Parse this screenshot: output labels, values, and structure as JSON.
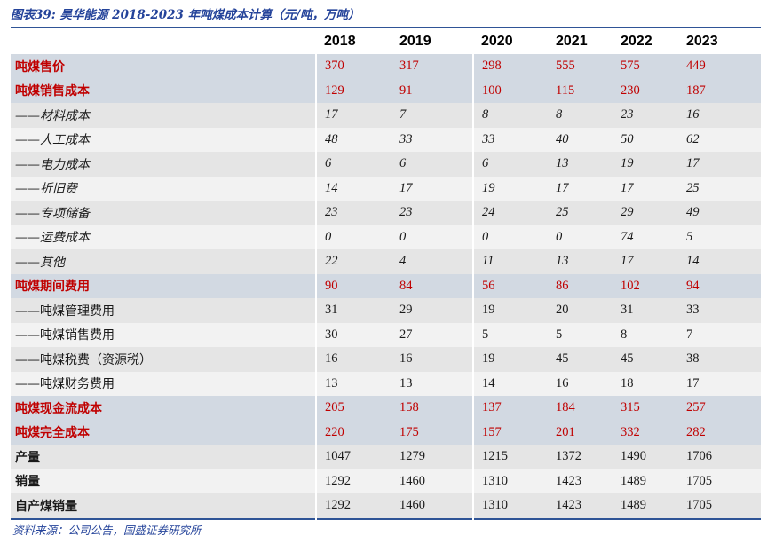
{
  "figure": {
    "title": "图表39: 昊华能源 2018-2023 年吨煤成本计算（元/吨，万吨）",
    "source": "资料来源：公司公告，国盛证券研究所"
  },
  "colors": {
    "accent_red": "#C00000",
    "title_blue": "#24439A",
    "rule_navy": "#2F5496",
    "row_highlight_blue": "#D2D9E2",
    "row_gray": "#E5E5E5",
    "row_light": "#F2F2F2"
  },
  "table": {
    "columns": [
      "",
      "2018",
      "2019",
      "2020",
      "2021",
      "2022",
      "2023"
    ],
    "rows": [
      {
        "label": "吨煤售价",
        "values": [
          "370",
          "317",
          "298",
          "555",
          "575",
          "449"
        ],
        "style": "red",
        "bg": "blue"
      },
      {
        "label": "吨煤销售成本",
        "values": [
          "129",
          "91",
          "100",
          "115",
          "230",
          "187"
        ],
        "style": "red",
        "bg": "blue"
      },
      {
        "label": "——材料成本",
        "values": [
          "17",
          "7",
          "8",
          "8",
          "23",
          "16"
        ],
        "style": "italic",
        "bg": "gray"
      },
      {
        "label": "——人工成本",
        "values": [
          "48",
          "33",
          "33",
          "40",
          "50",
          "62"
        ],
        "style": "italic",
        "bg": "light"
      },
      {
        "label": "——电力成本",
        "values": [
          "6",
          "6",
          "6",
          "13",
          "19",
          "17"
        ],
        "style": "italic",
        "bg": "gray"
      },
      {
        "label": "——折旧费",
        "values": [
          "14",
          "17",
          "19",
          "17",
          "17",
          "25"
        ],
        "style": "italic",
        "bg": "light"
      },
      {
        "label": "——专项储备",
        "values": [
          "23",
          "23",
          "24",
          "25",
          "29",
          "49"
        ],
        "style": "italic",
        "bg": "gray"
      },
      {
        "label": "——运费成本",
        "values": [
          "0",
          "0",
          "0",
          "0",
          "74",
          "5"
        ],
        "style": "italic",
        "bg": "light"
      },
      {
        "label": "——其他",
        "values": [
          "22",
          "4",
          "11",
          "13",
          "17",
          "14"
        ],
        "style": "italic",
        "bg": "gray"
      },
      {
        "label": "吨煤期间费用",
        "values": [
          "90",
          "84",
          "56",
          "86",
          "102",
          "94"
        ],
        "style": "red",
        "bg": "blue"
      },
      {
        "label": "——吨煤管理费用",
        "values": [
          "31",
          "29",
          "19",
          "20",
          "31",
          "33"
        ],
        "style": "plain",
        "bg": "gray"
      },
      {
        "label": "——吨煤销售费用",
        "values": [
          "30",
          "27",
          "5",
          "5",
          "8",
          "7"
        ],
        "style": "plain",
        "bg": "light"
      },
      {
        "label": "——吨煤税费（资源税）",
        "values": [
          "16",
          "16",
          "19",
          "45",
          "45",
          "38"
        ],
        "style": "plain",
        "bg": "gray"
      },
      {
        "label": "——吨煤财务费用",
        "values": [
          "13",
          "13",
          "14",
          "16",
          "18",
          "17"
        ],
        "style": "plain",
        "bg": "light"
      },
      {
        "label": "吨煤现金流成本",
        "values": [
          "205",
          "158",
          "137",
          "184",
          "315",
          "257"
        ],
        "style": "red",
        "bg": "blue"
      },
      {
        "label": "吨煤完全成本",
        "values": [
          "220",
          "175",
          "157",
          "201",
          "332",
          "282"
        ],
        "style": "red",
        "bg": "blue"
      },
      {
        "label": "产量",
        "values": [
          "1047",
          "1279",
          "1215",
          "1372",
          "1490",
          "1706"
        ],
        "style": "bold",
        "bg": "gray"
      },
      {
        "label": "销量",
        "values": [
          "1292",
          "1460",
          "1310",
          "1423",
          "1489",
          "1705"
        ],
        "style": "bold",
        "bg": "light"
      },
      {
        "label": "自产煤销量",
        "values": [
          "1292",
          "1460",
          "1310",
          "1423",
          "1489",
          "1705"
        ],
        "style": "bold",
        "bg": "gray"
      }
    ]
  }
}
